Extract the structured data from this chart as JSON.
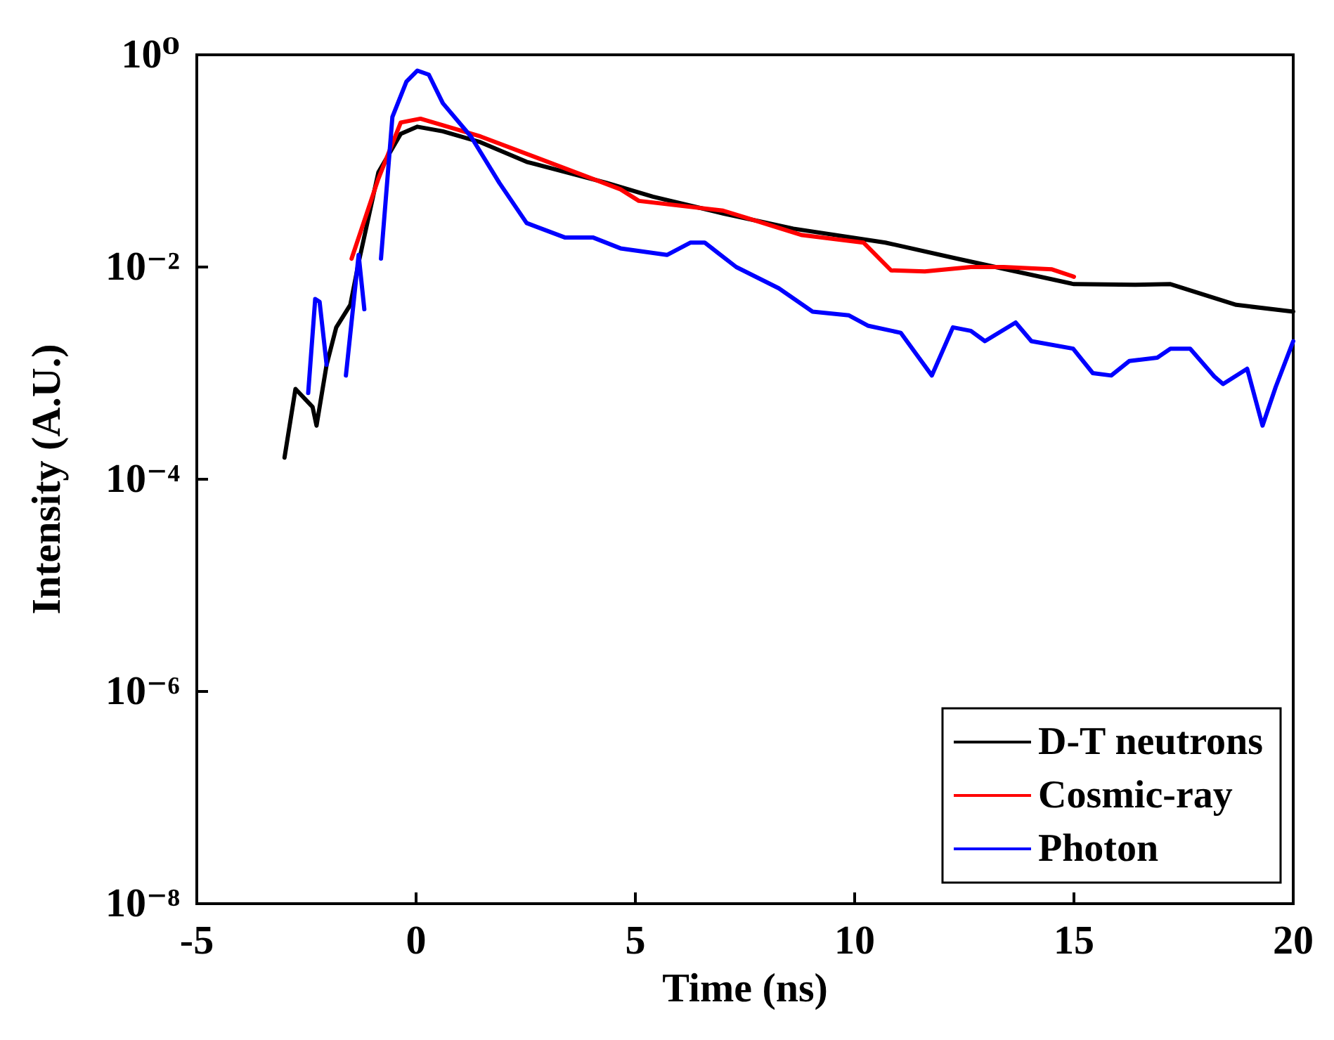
{
  "chart_data": {
    "type": "line",
    "xlabel": "Time (ns)",
    "ylabel": "Intensity (A.U.)",
    "log": "y",
    "grid": false,
    "legend": "bottom right",
    "marker": "none",
    "line_style": "solid",
    "xlim": [
      -5,
      20
    ],
    "xticks": [
      -5,
      0,
      5,
      10,
      15,
      20
    ],
    "ylim": [
      1e-08,
      1
    ],
    "yticks": [
      {
        "value": 1e-08,
        "label": "10⁻⁸"
      },
      {
        "value": 1e-06,
        "label": "10⁻⁶"
      },
      {
        "value": 0.0001,
        "label": "10⁻⁴"
      },
      {
        "value": 0.01,
        "label": "10⁻²"
      },
      {
        "value": 1,
        "label": "10⁰"
      }
    ],
    "series": [
      {
        "name": "D-T neutrons",
        "color": "#000000",
        "x": [
          -3.0,
          -2.75,
          -2.36,
          -2.27,
          -2.04,
          -1.82,
          -1.5,
          -1.31,
          -0.86,
          -0.35,
          0.03,
          0.61,
          1.47,
          2.52,
          4.35,
          5.4,
          7.0,
          8.6,
          10.7,
          12.33,
          15.0,
          16.4,
          17.2,
          18.7,
          20.0
        ],
        "values": [
          0.00016,
          0.00071,
          0.00048,
          0.00032,
          0.0012,
          0.0027,
          0.0044,
          0.011,
          0.078,
          0.18,
          0.21,
          0.19,
          0.15,
          0.098,
          0.062,
          0.046,
          0.032,
          0.023,
          0.017,
          0.012,
          0.0069,
          0.0068,
          0.0069,
          0.0044,
          0.0038
        ]
      },
      {
        "name": "Cosmic-ray",
        "color": "#ff0000",
        "x": [
          -1.47,
          -0.86,
          -0.35,
          0.1,
          1.47,
          4.66,
          5.08,
          7.0,
          7.54,
          8.8,
          10.2,
          10.83,
          11.6,
          12.65,
          13.4,
          14.5,
          15.0
        ],
        "values": [
          0.012,
          0.068,
          0.23,
          0.25,
          0.17,
          0.054,
          0.042,
          0.034,
          0.029,
          0.02,
          0.017,
          0.0093,
          0.0091,
          0.01,
          0.01,
          0.0095,
          0.0081
        ]
      },
      {
        "name": "Photon",
        "color": "#0000ff",
        "x": [
          -2.46,
          -2.3,
          -2.2,
          -2.04,
          -1.8,
          -1.6,
          -1.31,
          -1.18,
          -1.0,
          -0.8,
          -0.54,
          -0.22,
          0.03,
          0.29,
          0.61,
          1.25,
          1.9,
          2.52,
          3.39,
          4.03,
          4.66,
          5.72,
          6.26,
          6.58,
          7.3,
          8.27,
          9.04,
          9.87,
          10.3,
          11.05,
          11.76,
          12.24,
          12.65,
          12.97,
          13.67,
          14.03,
          14.98,
          15.43,
          15.85,
          16.26,
          16.9,
          17.2,
          17.65,
          18.2,
          18.4,
          18.95,
          19.3,
          19.6,
          20.0
        ],
        "values": [
          0.00065,
          0.005,
          0.0047,
          0.0012,
          null,
          0.00095,
          0.013,
          0.004,
          null,
          0.012,
          0.26,
          0.56,
          0.71,
          0.65,
          0.35,
          0.17,
          0.062,
          0.026,
          0.019,
          0.019,
          0.015,
          0.013,
          0.017,
          0.017,
          0.01,
          0.0063,
          0.0038,
          0.0035,
          0.0028,
          0.0024,
          0.00095,
          0.0027,
          0.0025,
          0.002,
          0.003,
          0.002,
          0.0017,
          0.001,
          0.00095,
          0.0013,
          0.0014,
          0.0017,
          0.0017,
          0.00093,
          0.00079,
          0.0011,
          0.00032,
          0.00074,
          0.002
        ]
      }
    ]
  }
}
